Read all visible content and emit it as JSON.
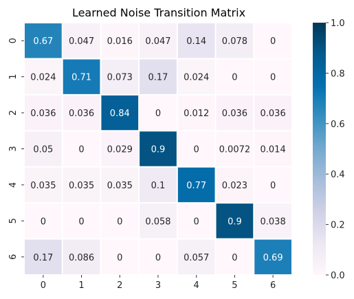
{
  "chart_data": {
    "type": "heatmap",
    "title": "Learned Noise Transition Matrix",
    "xlabel": "",
    "ylabel": "",
    "x_categories": [
      "0",
      "1",
      "2",
      "3",
      "4",
      "5",
      "6"
    ],
    "y_categories": [
      "0",
      "1",
      "2",
      "3",
      "4",
      "5",
      "6"
    ],
    "values": [
      [
        0.67,
        0.047,
        0.016,
        0.047,
        0.14,
        0.078,
        0
      ],
      [
        0.024,
        0.71,
        0.073,
        0.17,
        0.024,
        0,
        0
      ],
      [
        0.036,
        0.036,
        0.84,
        0,
        0.012,
        0.036,
        0.036
      ],
      [
        0.05,
        0,
        0.029,
        0.9,
        0,
        0.0072,
        0.014
      ],
      [
        0.035,
        0.035,
        0.035,
        0.1,
        0.77,
        0.023,
        0
      ],
      [
        0,
        0,
        0,
        0.058,
        0,
        0.9,
        0.038
      ],
      [
        0.17,
        0.086,
        0,
        0,
        0.057,
        0,
        0.69
      ]
    ],
    "value_labels": [
      [
        "0.67",
        "0.047",
        "0.016",
        "0.047",
        "0.14",
        "0.078",
        "0"
      ],
      [
        "0.024",
        "0.71",
        "0.073",
        "0.17",
        "0.024",
        "0",
        "0"
      ],
      [
        "0.036",
        "0.036",
        "0.84",
        "0",
        "0.012",
        "0.036",
        "0.036"
      ],
      [
        "0.05",
        "0",
        "0.029",
        "0.9",
        "0",
        "0.0072",
        "0.014"
      ],
      [
        "0.035",
        "0.035",
        "0.035",
        "0.1",
        "0.77",
        "0.023",
        "0"
      ],
      [
        "0",
        "0",
        "0",
        "0.058",
        "0",
        "0.9",
        "0.038"
      ],
      [
        "0.17",
        "0.086",
        "0",
        "0",
        "0.057",
        "0",
        "0.69"
      ]
    ],
    "colorbar": {
      "range": [
        0,
        1
      ],
      "ticks": [
        "0.0",
        "0.2",
        "0.4",
        "0.6",
        "0.8",
        "1.0"
      ],
      "colormap": "PuBu"
    },
    "grid": false,
    "legend": "right"
  }
}
